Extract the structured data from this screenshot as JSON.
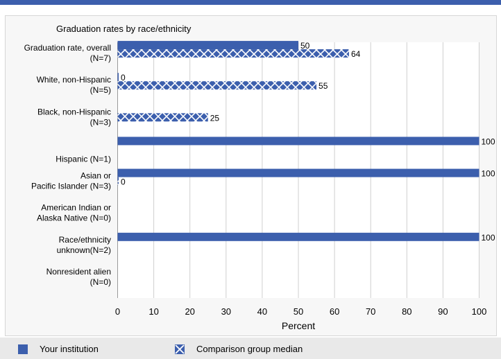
{
  "chart_data": {
    "type": "bar",
    "orientation": "horizontal",
    "title": "Graduation rates by race/ethnicity",
    "xlabel": "Percent",
    "ylabel": "",
    "xlim": [
      0,
      100
    ],
    "x_ticks": [
      "0",
      "10",
      "20",
      "30",
      "40",
      "50",
      "60",
      "70",
      "80",
      "90",
      "100"
    ],
    "grid": true,
    "legend_position": "bottom",
    "categories": [
      [
        "Graduation rate, overall",
        "(N=7)"
      ],
      [
        "White, non-Hispanic",
        "(N=5)"
      ],
      [
        "Black, non-Hispanic",
        "(N=3)"
      ],
      [
        "Hispanic (N=1)"
      ],
      [
        "Asian or",
        "Pacific Islander (N=3)"
      ],
      [
        "American Indian or",
        "Alaska Native (N=0)"
      ],
      [
        "Race/ethnicity",
        "unknown(N=2)"
      ],
      [
        "Nonresident alien",
        "(N=0)"
      ]
    ],
    "series": [
      {
        "name": "Your institution",
        "pattern": "solid",
        "color": "#3c5fad",
        "values": [
          50,
          0,
          null,
          100,
          100,
          null,
          100,
          null
        ],
        "labels": [
          "50",
          "0",
          "",
          "100",
          "100",
          "",
          "100",
          ""
        ]
      },
      {
        "name": "Comparison group median",
        "pattern": "crosshatch",
        "color": "#3c5fad",
        "values": [
          64,
          55,
          25,
          null,
          0,
          null,
          null,
          null
        ],
        "labels": [
          "64",
          "55",
          "25",
          "",
          "0",
          "",
          "",
          ""
        ]
      }
    ]
  }
}
